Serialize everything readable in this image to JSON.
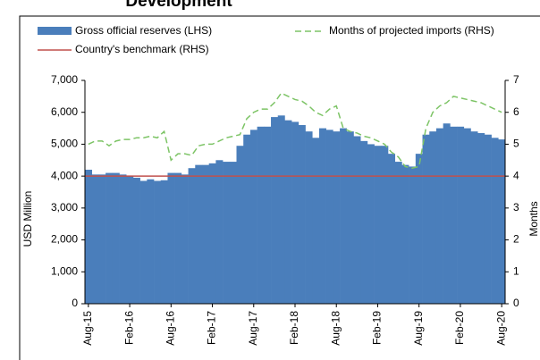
{
  "chart_data": {
    "type": "bar",
    "title": "Development",
    "categories": [
      "Aug-15",
      null,
      null,
      null,
      null,
      null,
      "Feb-16",
      null,
      null,
      null,
      null,
      null,
      "Aug-16",
      null,
      null,
      null,
      null,
      null,
      "Feb-17",
      null,
      null,
      null,
      null,
      null,
      "Aug-17",
      null,
      null,
      null,
      null,
      null,
      "Feb-18",
      null,
      null,
      null,
      null,
      null,
      "Aug-18",
      null,
      null,
      null,
      null,
      null,
      "Feb-19",
      null,
      null,
      null,
      null,
      null,
      "Aug-19",
      null,
      null,
      null,
      null,
      null,
      "Feb-20",
      null,
      null,
      null,
      null,
      null,
      "Aug-20"
    ],
    "series": [
      {
        "name": "Gross official reserves (LHS)",
        "color": "#4a7ebb",
        "type": "bar",
        "values": [
          4200,
          4050,
          4050,
          4100,
          4100,
          4050,
          4000,
          3950,
          3850,
          3900,
          3850,
          3870,
          4100,
          4100,
          4050,
          4250,
          4350,
          4350,
          4400,
          4500,
          4450,
          4450,
          4950,
          5300,
          5450,
          5550,
          5550,
          5850,
          5900,
          5750,
          5700,
          5600,
          5400,
          5200,
          5500,
          5450,
          5400,
          5500,
          5400,
          5250,
          5100,
          5000,
          4950,
          4950,
          4700,
          4450,
          4350,
          4300,
          4700,
          5300,
          5400,
          5500,
          5650,
          5550,
          5550,
          5500,
          5400,
          5350,
          5300,
          5200,
          5150
        ]
      },
      {
        "name": "Months of projected imports (RHS)",
        "color": "#7dc466",
        "type": "line",
        "axis": "y2",
        "dashed": true,
        "values": [
          5.0,
          5.1,
          5.1,
          4.95,
          5.1,
          5.15,
          5.15,
          5.2,
          5.2,
          5.25,
          5.2,
          5.4,
          4.5,
          4.7,
          4.7,
          4.65,
          4.95,
          5.0,
          5.0,
          5.1,
          5.2,
          5.25,
          5.3,
          5.8,
          6.0,
          6.1,
          6.1,
          6.3,
          6.6,
          6.5,
          6.4,
          6.35,
          6.2,
          6.0,
          5.9,
          6.1,
          6.2,
          5.5,
          5.4,
          5.35,
          5.25,
          5.2,
          5.1,
          5.0,
          4.75,
          4.6,
          4.3,
          4.25,
          4.3,
          5.5,
          6.0,
          6.2,
          6.3,
          6.5,
          6.45,
          6.4,
          6.35,
          6.3,
          6.2,
          6.1,
          6.0
        ]
      }
    ],
    "benchmark": {
      "name": "Country's benchmark (RHS)",
      "color": "#c0504d",
      "value": 4,
      "axis": "y2"
    },
    "ylabel": "USD Million",
    "y2label": "Months",
    "ylim": [
      0,
      7000
    ],
    "yticks": [
      0,
      {
        "value": 1000,
        "label": "1,000"
      },
      {
        "value": 2000,
        "label": "2,000"
      },
      {
        "value": 3000,
        "label": "3,000"
      },
      {
        "value": 4000,
        "label": "4,000"
      },
      {
        "value": 5000,
        "label": "5,000"
      },
      {
        "value": 6000,
        "label": "6,000"
      },
      {
        "value": 7000,
        "label": "7,000"
      }
    ],
    "y2lim": [
      0,
      7
    ],
    "y2ticks": [
      0,
      1,
      2,
      3,
      4,
      5,
      6,
      7
    ],
    "grid": false
  }
}
